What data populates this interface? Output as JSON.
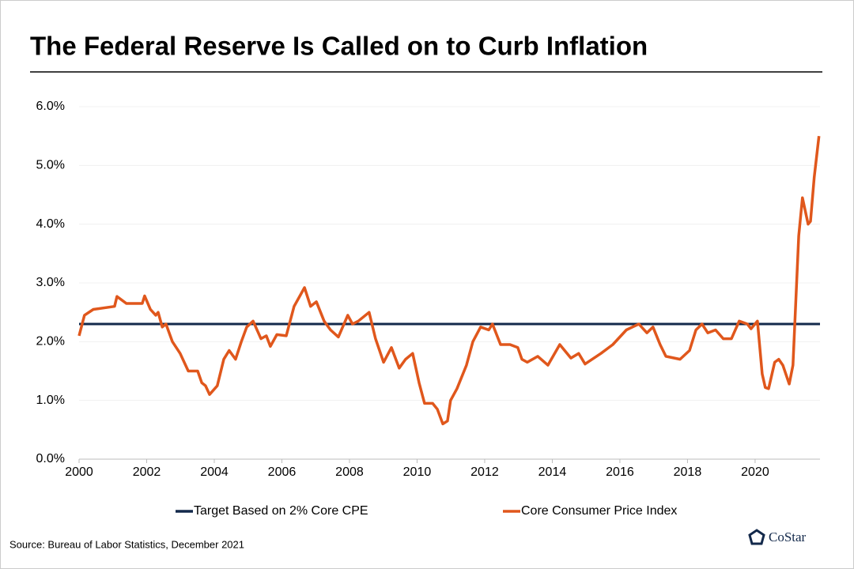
{
  "chart_data": {
    "type": "line",
    "title": "The Federal Reserve Is Called on to Curb Inflation",
    "source": "Source: Bureau of Labor Statistics, December 2021",
    "logo_text": "CoStar",
    "xlim": [
      2000,
      2021.92
    ],
    "xticks": [
      2000,
      2002,
      2004,
      2006,
      2008,
      2010,
      2012,
      2014,
      2016,
      2018,
      2020
    ],
    "ylim": [
      0,
      6
    ],
    "yticks": [
      {
        "value": 0,
        "label": "0.0%"
      },
      {
        "value": 1,
        "label": "1.0%"
      },
      {
        "value": 2,
        "label": "2.0%"
      },
      {
        "value": 3,
        "label": "3.0%"
      },
      {
        "value": 4,
        "label": "4.0%"
      },
      {
        "value": 5,
        "label": "5.0%"
      },
      {
        "value": 6,
        "label": "6.0%"
      }
    ],
    "grid": true,
    "legend": "bottom",
    "series": [
      {
        "name": "Target Based on 2% Core CPE",
        "color": "#13294b",
        "x": [
          2000,
          2021.92
        ],
        "values": [
          2.3,
          2.3
        ]
      },
      {
        "name": "Core Consumer Price Index",
        "color": "#e0571c",
        "x": [
          2000.0,
          2000.16,
          2000.42,
          2001.05,
          2001.12,
          2001.4,
          2001.87,
          2001.94,
          2002.11,
          2002.27,
          2002.34,
          2002.46,
          2002.57,
          2002.76,
          2002.99,
          2003.23,
          2003.51,
          2003.63,
          2003.74,
          2003.86,
          2004.09,
          2004.28,
          2004.44,
          2004.63,
          2004.8,
          2004.96,
          2005.15,
          2005.38,
          2005.54,
          2005.66,
          2005.85,
          2006.13,
          2006.36,
          2006.67,
          2006.85,
          2007.02,
          2007.25,
          2007.44,
          2007.67,
          2007.95,
          2008.09,
          2008.26,
          2008.58,
          2008.77,
          2009.01,
          2009.24,
          2009.47,
          2009.66,
          2009.87,
          2010.06,
          2010.22,
          2010.46,
          2010.6,
          2010.76,
          2010.9,
          2010.99,
          2011.18,
          2011.46,
          2011.65,
          2011.88,
          2012.12,
          2012.23,
          2012.47,
          2012.75,
          2012.98,
          2013.1,
          2013.26,
          2013.57,
          2013.87,
          2014.22,
          2014.55,
          2014.78,
          2014.97,
          2015.44,
          2015.79,
          2016.19,
          2016.37,
          2016.56,
          2016.8,
          2016.98,
          2017.19,
          2017.36,
          2017.78,
          2018.06,
          2018.25,
          2018.43,
          2018.6,
          2018.83,
          2019.06,
          2019.3,
          2019.53,
          2019.77,
          2019.88,
          2020.07,
          2020.21,
          2020.3,
          2020.4,
          2020.58,
          2020.7,
          2020.82,
          2021.01,
          2021.12,
          2021.29,
          2021.4,
          2021.57,
          2021.64,
          2021.75,
          2021.89
        ],
        "values": [
          2.1,
          2.45,
          2.55,
          2.6,
          2.77,
          2.65,
          2.65,
          2.78,
          2.55,
          2.45,
          2.5,
          2.25,
          2.3,
          2.0,
          1.8,
          1.5,
          1.5,
          1.3,
          1.25,
          1.1,
          1.25,
          1.7,
          1.85,
          1.7,
          2.0,
          2.25,
          2.35,
          2.05,
          2.1,
          1.92,
          2.12,
          2.1,
          2.6,
          2.92,
          2.6,
          2.68,
          2.35,
          2.2,
          2.08,
          2.45,
          2.3,
          2.35,
          2.5,
          2.05,
          1.65,
          1.9,
          1.55,
          1.7,
          1.8,
          1.3,
          0.95,
          0.95,
          0.85,
          0.6,
          0.65,
          1.0,
          1.2,
          1.6,
          2.0,
          2.25,
          2.2,
          2.3,
          1.95,
          1.95,
          1.9,
          1.7,
          1.65,
          1.75,
          1.6,
          1.95,
          1.72,
          1.8,
          1.62,
          1.8,
          1.95,
          2.2,
          2.25,
          2.3,
          2.15,
          2.25,
          1.95,
          1.75,
          1.7,
          1.85,
          2.2,
          2.3,
          2.15,
          2.2,
          2.05,
          2.05,
          2.35,
          2.3,
          2.22,
          2.35,
          1.45,
          1.22,
          1.2,
          1.65,
          1.7,
          1.6,
          1.28,
          1.6,
          3.8,
          4.45,
          4.0,
          4.05,
          4.8,
          5.5
        ]
      }
    ]
  }
}
